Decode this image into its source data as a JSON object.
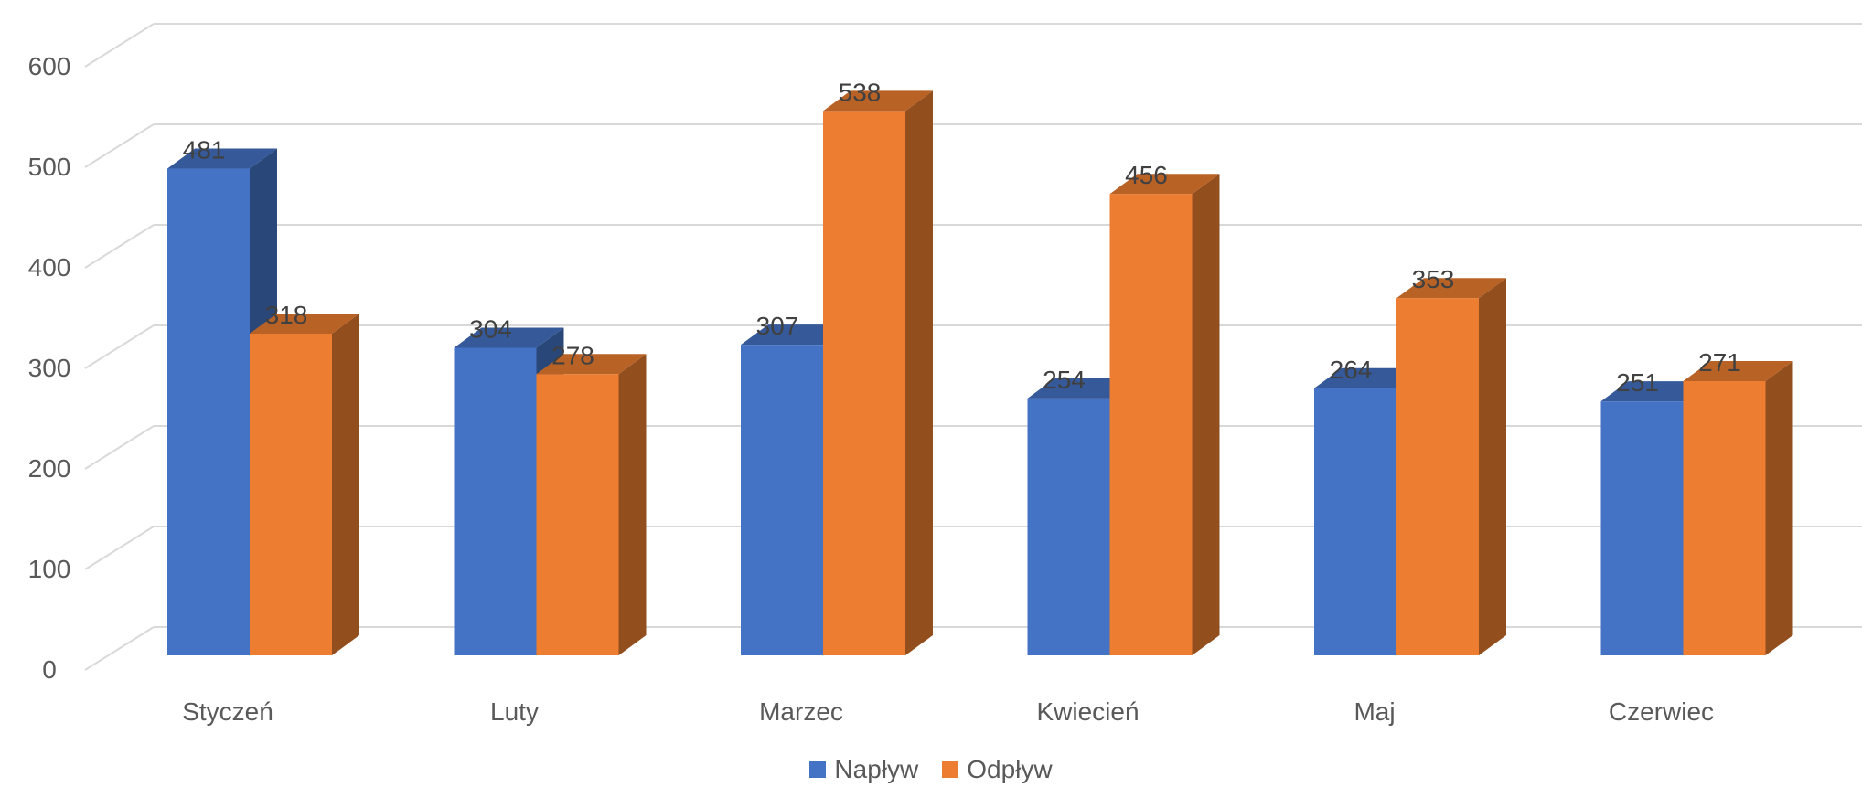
{
  "chart_data": {
    "type": "bar",
    "categories": [
      "Styczeń",
      "Luty",
      "Marzec",
      "Kwiecień",
      "Maj",
      "Czerwiec"
    ],
    "series": [
      {
        "name": "Napływ",
        "values": [
          481,
          304,
          307,
          254,
          264,
          251
        ],
        "color": "#4472C4"
      },
      {
        "name": "Odpływ",
        "values": [
          318,
          278,
          538,
          456,
          353,
          271
        ],
        "color": "#ED7D31"
      }
    ],
    "title": "",
    "xlabel": "",
    "ylabel": "",
    "ylim": [
      0,
      600
    ],
    "yticks": [
      0,
      100,
      200,
      300,
      400,
      500,
      600
    ],
    "grid": true,
    "style": "3d-clustered-column",
    "legend_position": "bottom",
    "data_labels": true
  },
  "legend": {
    "items": [
      {
        "label": "Napływ",
        "color": "#4472C4"
      },
      {
        "label": "Odpływ",
        "color": "#ED7D31"
      }
    ]
  }
}
